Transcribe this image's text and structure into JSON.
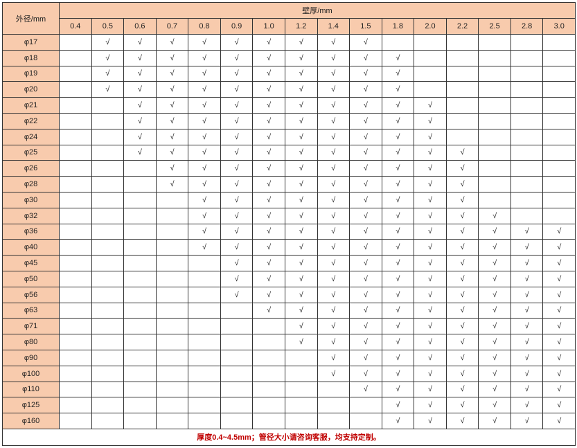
{
  "table": {
    "corner_label": "外径/mm",
    "group_label": "壁厚/mm",
    "columns": [
      "0.4",
      "0.5",
      "0.6",
      "0.7",
      "0.8",
      "0.9",
      "1.0",
      "1.2",
      "1.4",
      "1.5",
      "1.8",
      "2.0",
      "2.2",
      "2.5",
      "2.8",
      "3.0"
    ],
    "rows": [
      {
        "label": "φ17",
        "cells": [
          "",
          "√",
          "√",
          "√",
          "√",
          "√",
          "√",
          "√",
          "√",
          "√",
          "",
          "",
          "",
          "",
          "",
          ""
        ]
      },
      {
        "label": "φ18",
        "cells": [
          "",
          "√",
          "√",
          "√",
          "√",
          "√",
          "√",
          "√",
          "√",
          "√",
          "√",
          "",
          "",
          "",
          "",
          ""
        ]
      },
      {
        "label": "φ19",
        "cells": [
          "",
          "√",
          "√",
          "√",
          "√",
          "√",
          "√",
          "√",
          "√",
          "√",
          "√",
          "",
          "",
          "",
          "",
          ""
        ]
      },
      {
        "label": "φ20",
        "cells": [
          "",
          "√",
          "√",
          "√",
          "√",
          "√",
          "√",
          "√",
          "√",
          "√",
          "√",
          "",
          "",
          "",
          "",
          ""
        ]
      },
      {
        "label": "φ21",
        "cells": [
          "",
          "",
          "√",
          "√",
          "√",
          "√",
          "√",
          "√",
          "√",
          "√",
          "√",
          "√",
          "",
          "",
          "",
          ""
        ]
      },
      {
        "label": "φ22",
        "cells": [
          "",
          "",
          "√",
          "√",
          "√",
          "√",
          "√",
          "√",
          "√",
          "√",
          "√",
          "√",
          "",
          "",
          "",
          ""
        ]
      },
      {
        "label": "φ24",
        "cells": [
          "",
          "",
          "√",
          "√",
          "√",
          "√",
          "√",
          "√",
          "√",
          "√",
          "√",
          "√",
          "",
          "",
          "",
          ""
        ]
      },
      {
        "label": "φ25",
        "cells": [
          "",
          "",
          "√",
          "√",
          "√",
          "√",
          "√",
          "√",
          "√",
          "√",
          "√",
          "√",
          "√",
          "",
          "",
          ""
        ]
      },
      {
        "label": "φ26",
        "cells": [
          "",
          "",
          "",
          "√",
          "√",
          "√",
          "√",
          "√",
          "√",
          "√",
          "√",
          "√",
          "√",
          "",
          "",
          ""
        ]
      },
      {
        "label": "φ28",
        "cells": [
          "",
          "",
          "",
          "√",
          "√",
          "√",
          "√",
          "√",
          "√",
          "√",
          "√",
          "√",
          "√",
          "",
          "",
          ""
        ]
      },
      {
        "label": "φ30",
        "cells": [
          "",
          "",
          "",
          "",
          "√",
          "√",
          "√",
          "√",
          "√",
          "√",
          "√",
          "√",
          "√",
          "",
          "",
          ""
        ]
      },
      {
        "label": "φ32",
        "cells": [
          "",
          "",
          "",
          "",
          "√",
          "√",
          "√",
          "√",
          "√",
          "√",
          "√",
          "√",
          "√",
          "√",
          "",
          ""
        ]
      },
      {
        "label": "φ36",
        "cells": [
          "",
          "",
          "",
          "",
          "√",
          "√",
          "√",
          "√",
          "√",
          "√",
          "√",
          "√",
          "√",
          "√",
          "√",
          "√"
        ]
      },
      {
        "label": "φ40",
        "cells": [
          "",
          "",
          "",
          "",
          "√",
          "√",
          "√",
          "√",
          "√",
          "√",
          "√",
          "√",
          "√",
          "√",
          "√",
          "√"
        ]
      },
      {
        "label": "φ45",
        "cells": [
          "",
          "",
          "",
          "",
          "",
          "√",
          "√",
          "√",
          "√",
          "√",
          "√",
          "√",
          "√",
          "√",
          "√",
          "√"
        ]
      },
      {
        "label": "φ50",
        "cells": [
          "",
          "",
          "",
          "",
          "",
          "√",
          "√",
          "√",
          "√",
          "√",
          "√",
          "√",
          "√",
          "√",
          "√",
          "√"
        ]
      },
      {
        "label": "φ56",
        "cells": [
          "",
          "",
          "",
          "",
          "",
          "√",
          "√",
          "√",
          "√",
          "√",
          "√",
          "√",
          "√",
          "√",
          "√",
          "√"
        ]
      },
      {
        "label": "φ63",
        "cells": [
          "",
          "",
          "",
          "",
          "",
          "",
          "√",
          "√",
          "√",
          "√",
          "√",
          "√",
          "√",
          "√",
          "√",
          "√"
        ]
      },
      {
        "label": "φ71",
        "cells": [
          "",
          "",
          "",
          "",
          "",
          "",
          "",
          "√",
          "√",
          "√",
          "√",
          "√",
          "√",
          "√",
          "√",
          "√"
        ]
      },
      {
        "label": "φ80",
        "cells": [
          "",
          "",
          "",
          "",
          "",
          "",
          "",
          "√",
          "√",
          "√",
          "√",
          "√",
          "√",
          "√",
          "√",
          "√"
        ]
      },
      {
        "label": "φ90",
        "cells": [
          "",
          "",
          "",
          "",
          "",
          "",
          "",
          "",
          "√",
          "√",
          "√",
          "√",
          "√",
          "√",
          "√",
          "√"
        ]
      },
      {
        "label": "φ100",
        "cells": [
          "",
          "",
          "",
          "",
          "",
          "",
          "",
          "",
          "√",
          "√",
          "√",
          "√",
          "√",
          "√",
          "√",
          "√"
        ]
      },
      {
        "label": "φ110",
        "cells": [
          "",
          "",
          "",
          "",
          "",
          "",
          "",
          "",
          "",
          "√",
          "√",
          "√",
          "√",
          "√",
          "√",
          "√"
        ]
      },
      {
        "label": "φ125",
        "cells": [
          "",
          "",
          "",
          "",
          "",
          "",
          "",
          "",
          "",
          "",
          "√",
          "√",
          "√",
          "√",
          "√",
          "√"
        ]
      },
      {
        "label": "φ160",
        "cells": [
          "",
          "",
          "",
          "",
          "",
          "",
          "",
          "",
          "",
          "",
          "√",
          "√",
          "√",
          "√",
          "√",
          "√"
        ]
      }
    ],
    "footer_note": "厚度0.4~4.5mm；管径大小请咨询客服，均支持定制。"
  },
  "colors": {
    "header_bg": "#f8cbad",
    "note_color": "#c00000",
    "border": "#333333"
  }
}
